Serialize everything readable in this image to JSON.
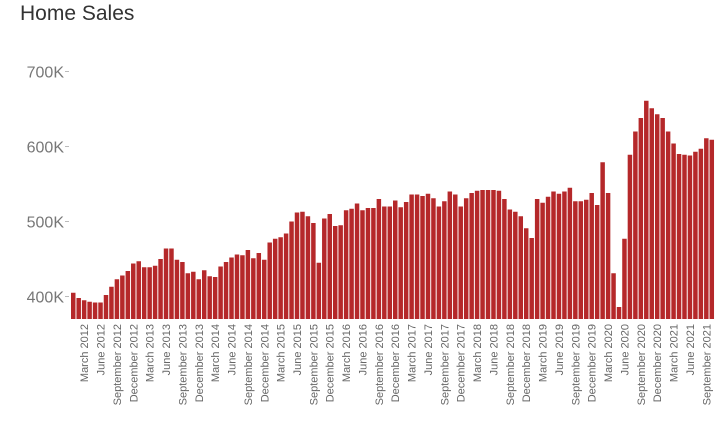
{
  "chart_data": {
    "type": "bar",
    "title": "Home Sales",
    "xlabel": "",
    "ylabel": "",
    "ylim": [
      370000,
      710000
    ],
    "y_ticks": [
      {
        "value": 400000,
        "label": "400K"
      },
      {
        "value": 500000,
        "label": "500K"
      },
      {
        "value": 600000,
        "label": "600K"
      },
      {
        "value": 700000,
        "label": "700K"
      }
    ],
    "bar_color": "#b5282a",
    "grid": false,
    "legend": "none",
    "x_tick_labels": [
      {
        "index": 2,
        "label": "March 2012"
      },
      {
        "index": 5,
        "label": "June 2012"
      },
      {
        "index": 8,
        "label": "September 2012"
      },
      {
        "index": 11,
        "label": "December 2012"
      },
      {
        "index": 14,
        "label": "March 2013"
      },
      {
        "index": 17,
        "label": "June 2013"
      },
      {
        "index": 20,
        "label": "September 2013"
      },
      {
        "index": 23,
        "label": "December 2013"
      },
      {
        "index": 26,
        "label": "March 2014"
      },
      {
        "index": 29,
        "label": "June 2014"
      },
      {
        "index": 32,
        "label": "September 2014"
      },
      {
        "index": 35,
        "label": "December 2014"
      },
      {
        "index": 38,
        "label": "March 2015"
      },
      {
        "index": 41,
        "label": "June 2015"
      },
      {
        "index": 44,
        "label": "September 2015"
      },
      {
        "index": 47,
        "label": "December 2015"
      },
      {
        "index": 50,
        "label": "March 2016"
      },
      {
        "index": 53,
        "label": "June 2016"
      },
      {
        "index": 56,
        "label": "September 2016"
      },
      {
        "index": 59,
        "label": "December 2016"
      },
      {
        "index": 62,
        "label": "March 2017"
      },
      {
        "index": 65,
        "label": "June 2017"
      },
      {
        "index": 68,
        "label": "September 2017"
      },
      {
        "index": 71,
        "label": "December 2017"
      },
      {
        "index": 74,
        "label": "March 2018"
      },
      {
        "index": 77,
        "label": "June 2018"
      },
      {
        "index": 80,
        "label": "September 2018"
      },
      {
        "index": 83,
        "label": "December 2018"
      },
      {
        "index": 86,
        "label": "March 2019"
      },
      {
        "index": 89,
        "label": "June 2019"
      },
      {
        "index": 92,
        "label": "September 2019"
      },
      {
        "index": 95,
        "label": "December 2019"
      },
      {
        "index": 98,
        "label": "March 2020"
      },
      {
        "index": 101,
        "label": "June 2020"
      },
      {
        "index": 104,
        "label": "September 2020"
      },
      {
        "index": 107,
        "label": "December 2020"
      },
      {
        "index": 110,
        "label": "March 2021"
      },
      {
        "index": 113,
        "label": "June 2021"
      },
      {
        "index": 116,
        "label": "September 2021"
      }
    ],
    "categories": [
      "2012-01",
      "2012-02",
      "2012-03",
      "2012-04",
      "2012-05",
      "2012-06",
      "2012-07",
      "2012-08",
      "2012-09",
      "2012-10",
      "2012-11",
      "2012-12",
      "2013-01",
      "2013-02",
      "2013-03",
      "2013-04",
      "2013-05",
      "2013-06",
      "2013-07",
      "2013-08",
      "2013-09",
      "2013-10",
      "2013-11",
      "2013-12",
      "2014-01",
      "2014-02",
      "2014-03",
      "2014-04",
      "2014-05",
      "2014-06",
      "2014-07",
      "2014-08",
      "2014-09",
      "2014-10",
      "2014-11",
      "2014-12",
      "2015-01",
      "2015-02",
      "2015-03",
      "2015-04",
      "2015-05",
      "2015-06",
      "2015-07",
      "2015-08",
      "2015-09",
      "2015-10",
      "2015-11",
      "2015-12",
      "2016-01",
      "2016-02",
      "2016-03",
      "2016-04",
      "2016-05",
      "2016-06",
      "2016-07",
      "2016-08",
      "2016-09",
      "2016-10",
      "2016-11",
      "2016-12",
      "2017-01",
      "2017-02",
      "2017-03",
      "2017-04",
      "2017-05",
      "2017-06",
      "2017-07",
      "2017-08",
      "2017-09",
      "2017-10",
      "2017-11",
      "2017-12",
      "2018-01",
      "2018-02",
      "2018-03",
      "2018-04",
      "2018-05",
      "2018-06",
      "2018-07",
      "2018-08",
      "2018-09",
      "2018-10",
      "2018-11",
      "2018-12",
      "2019-01",
      "2019-02",
      "2019-03",
      "2019-04",
      "2019-05",
      "2019-06",
      "2019-07",
      "2019-08",
      "2019-09",
      "2019-10",
      "2019-11",
      "2019-12",
      "2020-01",
      "2020-02",
      "2020-03",
      "2020-04",
      "2020-05",
      "2020-06",
      "2020-07",
      "2020-08",
      "2020-09",
      "2020-10",
      "2020-11",
      "2020-12",
      "2021-01",
      "2021-02",
      "2021-03",
      "2021-04",
      "2021-05",
      "2021-06",
      "2021-07",
      "2021-08",
      "2021-09",
      "2021-10"
    ],
    "values": [
      405000,
      398000,
      395000,
      393000,
      392000,
      392000,
      402000,
      413000,
      423000,
      428000,
      434000,
      444000,
      447000,
      439000,
      439000,
      441000,
      450000,
      464000,
      464000,
      449000,
      446000,
      431000,
      433000,
      423000,
      435000,
      427000,
      426000,
      440000,
      446000,
      452000,
      456000,
      455000,
      462000,
      451000,
      458000,
      449000,
      472000,
      477000,
      479000,
      484000,
      500000,
      512000,
      513000,
      507000,
      498000,
      445000,
      504000,
      510000,
      494000,
      495000,
      515000,
      517000,
      524000,
      515000,
      518000,
      518000,
      530000,
      520000,
      520000,
      528000,
      519000,
      526000,
      536000,
      536000,
      534000,
      537000,
      531000,
      520000,
      527000,
      540000,
      536000,
      520000,
      531000,
      538000,
      541000,
      542000,
      542000,
      542000,
      541000,
      530000,
      516000,
      513000,
      507000,
      491000,
      478000,
      530000,
      525000,
      533000,
      540000,
      537000,
      540000,
      545000,
      527000,
      527000,
      529000,
      538000,
      522000,
      579000,
      538000,
      431000,
      386000,
      477000,
      589000,
      620000,
      638000,
      661000,
      651000,
      643000,
      638000,
      620000,
      604000,
      590000,
      589000,
      588000,
      593000,
      597000,
      611000,
      609000
    ]
  }
}
